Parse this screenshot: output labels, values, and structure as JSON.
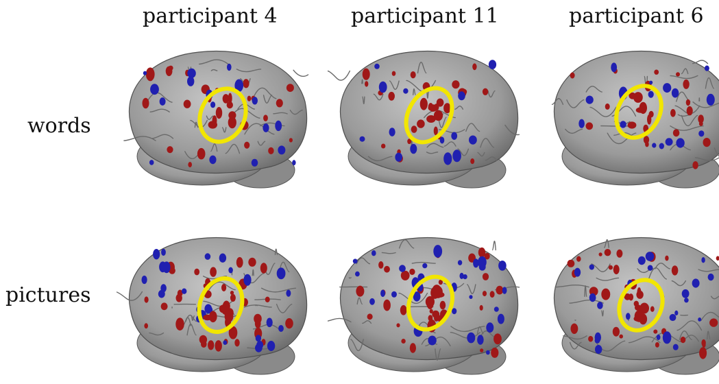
{
  "columns": [
    {
      "title": "participant 4"
    },
    {
      "title": "participant 11"
    },
    {
      "title": "participant 6"
    }
  ],
  "rows": [
    {
      "label": "words"
    },
    {
      "label": "pictures"
    }
  ],
  "colors": {
    "brain": "#9a9a9a",
    "activation_red": "#a01818",
    "activation_blue": "#2020b0",
    "highlight_ring": "#f2e600",
    "background": "#ffffff"
  },
  "panels": [
    {
      "participant": "participant 4",
      "condition": "words"
    },
    {
      "participant": "participant 11",
      "condition": "words"
    },
    {
      "participant": "participant 6",
      "condition": "words"
    },
    {
      "participant": "participant 4",
      "condition": "pictures"
    },
    {
      "participant": "participant 11",
      "condition": "pictures"
    },
    {
      "participant": "participant 6",
      "condition": "pictures"
    }
  ]
}
